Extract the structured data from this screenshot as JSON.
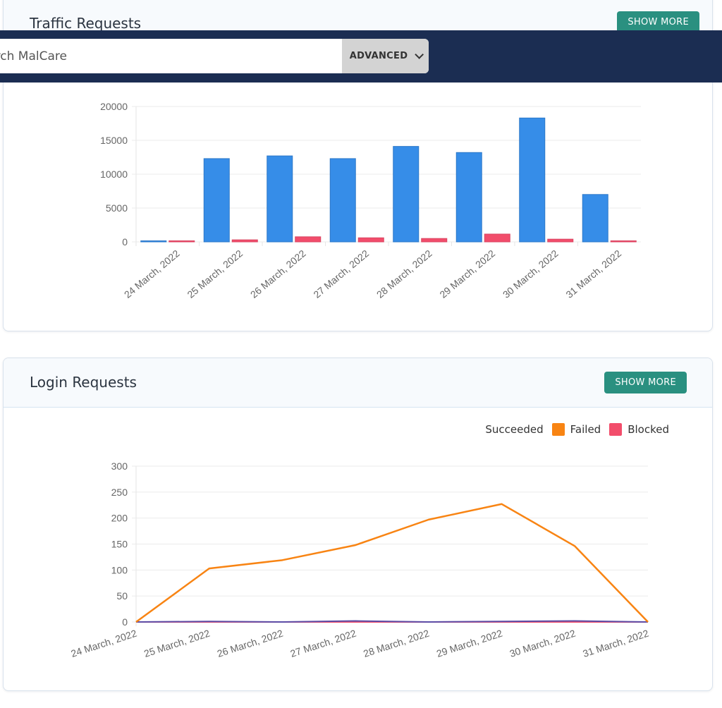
{
  "search": {
    "placeholder": "Search MalCare"
  },
  "toolbar": {
    "advanced_label": "ADVANCED"
  },
  "traffic": {
    "title": "Traffic Requests",
    "show_more_label": "SHOW MORE",
    "colors": {
      "series_a": "#368de8",
      "series_b": "#f24d6b"
    }
  },
  "login": {
    "title": "Login Requests",
    "show_more_label": "SHOW MORE",
    "legend": [
      {
        "label": "Succeeded",
        "color": ""
      },
      {
        "label": "Failed",
        "color": "#f88413"
      },
      {
        "label": "Blocked",
        "color": "#f24d6b"
      }
    ]
  },
  "chart_data": [
    {
      "type": "bar",
      "title": "Traffic Requests",
      "categories": [
        "24 March, 2022",
        "25 March, 2022",
        "26 March, 2022",
        "27 March, 2022",
        "28 March, 2022",
        "29 March, 2022",
        "30 March, 2022",
        "31 March, 2022"
      ],
      "series": [
        {
          "color": "#368de8",
          "values": [
            30,
            12300,
            12700,
            12300,
            14100,
            13200,
            18300,
            7000
          ]
        },
        {
          "color": "#f24d6b",
          "values": [
            20,
            300,
            750,
            600,
            500,
            1150,
            400,
            60
          ]
        }
      ],
      "ylim": [
        0,
        20000
      ],
      "yticks": [
        0,
        5000,
        10000,
        15000,
        20000
      ],
      "grid": true
    },
    {
      "type": "line",
      "title": "Login Requests",
      "categories": [
        "24 March, 2022",
        "25 March, 2022",
        "26 March, 2022",
        "27 March, 2022",
        "28 March, 2022",
        "29 March, 2022",
        "30 March, 2022",
        "31 March, 2022"
      ],
      "series": [
        {
          "name": "Succeeded",
          "color": "#5b4ea8",
          "values": [
            0,
            1,
            0,
            2,
            0,
            1,
            2,
            0
          ]
        },
        {
          "name": "Failed",
          "color": "#f88413",
          "values": [
            0,
            103,
            119,
            148,
            197,
            227,
            146,
            0
          ]
        },
        {
          "name": "Blocked",
          "color": "#f24d6b",
          "values": [
            0,
            0,
            0,
            0,
            0,
            0,
            0,
            0
          ]
        }
      ],
      "ylim": [
        0,
        300
      ],
      "yticks": [
        0,
        50,
        100,
        150,
        200,
        250,
        300
      ],
      "grid": true,
      "legend": "top-right"
    }
  ]
}
